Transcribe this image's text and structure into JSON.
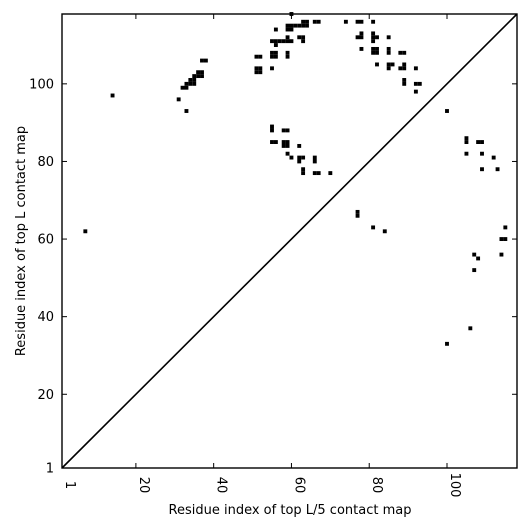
{
  "chart_data": {
    "type": "scatter",
    "xlabel": "Residue index of top L/5 contact map",
    "ylabel": "Residue index of top L contact map",
    "xlim": [
      1,
      118
    ],
    "ylim": [
      1,
      118
    ],
    "x_ticks": [
      1,
      20,
      40,
      60,
      80,
      100
    ],
    "y_ticks": [
      1,
      20,
      40,
      60,
      80,
      100
    ],
    "grid": false,
    "diagonal": true,
    "marker_color": "#000000",
    "points": [
      {
        "x": 7,
        "y": 62
      },
      {
        "x": 14,
        "y": 97
      },
      {
        "x": 31,
        "y": 96
      },
      {
        "x": 32,
        "y": 99
      },
      {
        "x": 33,
        "y": 93
      },
      {
        "x": 33,
        "y": 99
      },
      {
        "x": 33,
        "y": 100
      },
      {
        "x": 34,
        "y": 100
      },
      {
        "x": 34,
        "y": 101
      },
      {
        "x": 35,
        "y": 100
      },
      {
        "x": 35,
        "y": 101
      },
      {
        "x": 35,
        "y": 102
      },
      {
        "x": 36,
        "y": 102
      },
      {
        "x": 36,
        "y": 103
      },
      {
        "x": 37,
        "y": 102
      },
      {
        "x": 37,
        "y": 103
      },
      {
        "x": 37,
        "y": 106
      },
      {
        "x": 38,
        "y": 106
      },
      {
        "x": 51,
        "y": 103
      },
      {
        "x": 51,
        "y": 104
      },
      {
        "x": 51,
        "y": 107
      },
      {
        "x": 52,
        "y": 103
      },
      {
        "x": 52,
        "y": 104
      },
      {
        "x": 52,
        "y": 107
      },
      {
        "x": 55,
        "y": 85
      },
      {
        "x": 55,
        "y": 88
      },
      {
        "x": 55,
        "y": 89
      },
      {
        "x": 55,
        "y": 104
      },
      {
        "x": 55,
        "y": 107
      },
      {
        "x": 55,
        "y": 108
      },
      {
        "x": 55,
        "y": 111
      },
      {
        "x": 56,
        "y": 85
      },
      {
        "x": 56,
        "y": 107
      },
      {
        "x": 56,
        "y": 108
      },
      {
        "x": 56,
        "y": 110
      },
      {
        "x": 56,
        "y": 111
      },
      {
        "x": 56,
        "y": 114
      },
      {
        "x": 57,
        "y": 111
      },
      {
        "x": 58,
        "y": 84
      },
      {
        "x": 58,
        "y": 85
      },
      {
        "x": 58,
        "y": 88
      },
      {
        "x": 58,
        "y": 111
      },
      {
        "x": 59,
        "y": 82
      },
      {
        "x": 59,
        "y": 84
      },
      {
        "x": 59,
        "y": 85
      },
      {
        "x": 59,
        "y": 88
      },
      {
        "x": 59,
        "y": 107
      },
      {
        "x": 59,
        "y": 108
      },
      {
        "x": 59,
        "y": 111
      },
      {
        "x": 59,
        "y": 112
      },
      {
        "x": 59,
        "y": 114
      },
      {
        "x": 59,
        "y": 115
      },
      {
        "x": 60,
        "y": 81
      },
      {
        "x": 60,
        "y": 111
      },
      {
        "x": 60,
        "y": 114
      },
      {
        "x": 60,
        "y": 115
      },
      {
        "x": 60,
        "y": 118
      },
      {
        "x": 61,
        "y": 115
      },
      {
        "x": 62,
        "y": 80
      },
      {
        "x": 62,
        "y": 81
      },
      {
        "x": 62,
        "y": 84
      },
      {
        "x": 62,
        "y": 112
      },
      {
        "x": 62,
        "y": 115
      },
      {
        "x": 63,
        "y": 77
      },
      {
        "x": 63,
        "y": 78
      },
      {
        "x": 63,
        "y": 81
      },
      {
        "x": 63,
        "y": 111
      },
      {
        "x": 63,
        "y": 112
      },
      {
        "x": 63,
        "y": 115
      },
      {
        "x": 63,
        "y": 116
      },
      {
        "x": 64,
        "y": 115
      },
      {
        "x": 64,
        "y": 116
      },
      {
        "x": 66,
        "y": 77
      },
      {
        "x": 66,
        "y": 80
      },
      {
        "x": 66,
        "y": 81
      },
      {
        "x": 66,
        "y": 116
      },
      {
        "x": 67,
        "y": 77
      },
      {
        "x": 67,
        "y": 116
      },
      {
        "x": 70,
        "y": 77
      },
      {
        "x": 74,
        "y": 116
      },
      {
        "x": 77,
        "y": 66
      },
      {
        "x": 77,
        "y": 67
      },
      {
        "x": 77,
        "y": 112
      },
      {
        "x": 77,
        "y": 116
      },
      {
        "x": 78,
        "y": 109
      },
      {
        "x": 78,
        "y": 112
      },
      {
        "x": 78,
        "y": 113
      },
      {
        "x": 78,
        "y": 116
      },
      {
        "x": 81,
        "y": 63
      },
      {
        "x": 81,
        "y": 108
      },
      {
        "x": 81,
        "y": 109
      },
      {
        "x": 81,
        "y": 111
      },
      {
        "x": 81,
        "y": 112
      },
      {
        "x": 81,
        "y": 113
      },
      {
        "x": 81,
        "y": 116
      },
      {
        "x": 82,
        "y": 105
      },
      {
        "x": 82,
        "y": 108
      },
      {
        "x": 82,
        "y": 109
      },
      {
        "x": 82,
        "y": 112
      },
      {
        "x": 84,
        "y": 62
      },
      {
        "x": 85,
        "y": 104
      },
      {
        "x": 85,
        "y": 105
      },
      {
        "x": 85,
        "y": 108
      },
      {
        "x": 85,
        "y": 109
      },
      {
        "x": 85,
        "y": 112
      },
      {
        "x": 86,
        "y": 105
      },
      {
        "x": 88,
        "y": 104
      },
      {
        "x": 88,
        "y": 108
      },
      {
        "x": 89,
        "y": 100
      },
      {
        "x": 89,
        "y": 101
      },
      {
        "x": 89,
        "y": 104
      },
      {
        "x": 89,
        "y": 105
      },
      {
        "x": 89,
        "y": 108
      },
      {
        "x": 92,
        "y": 98
      },
      {
        "x": 92,
        "y": 100
      },
      {
        "x": 92,
        "y": 104
      },
      {
        "x": 93,
        "y": 100
      },
      {
        "x": 100,
        "y": 33
      },
      {
        "x": 100,
        "y": 93
      },
      {
        "x": 105,
        "y": 82
      },
      {
        "x": 105,
        "y": 85
      },
      {
        "x": 105,
        "y": 86
      },
      {
        "x": 106,
        "y": 37
      },
      {
        "x": 107,
        "y": 52
      },
      {
        "x": 107,
        "y": 56
      },
      {
        "x": 108,
        "y": 55
      },
      {
        "x": 108,
        "y": 85
      },
      {
        "x": 109,
        "y": 78
      },
      {
        "x": 109,
        "y": 82
      },
      {
        "x": 109,
        "y": 85
      },
      {
        "x": 112,
        "y": 81
      },
      {
        "x": 113,
        "y": 78
      },
      {
        "x": 114,
        "y": 56
      },
      {
        "x": 114,
        "y": 60
      },
      {
        "x": 115,
        "y": 60
      },
      {
        "x": 115,
        "y": 63
      }
    ]
  }
}
